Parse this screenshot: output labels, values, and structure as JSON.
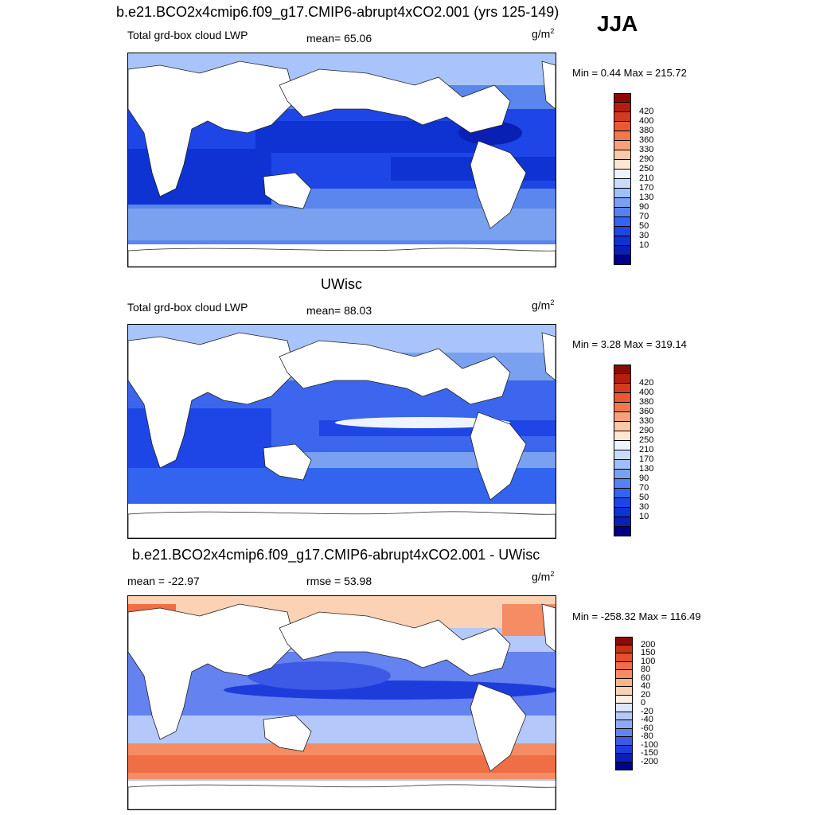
{
  "season": "JJA",
  "panels": [
    {
      "title": "b.e21.BCO2x4cmip6.f09_g17.CMIP6-abrupt4xCO2.001 (yrs 125-149)",
      "left_label": "Total grd-box cloud LWP",
      "center_label": "mean=  65.06",
      "units": "g/m",
      "units_sup": "2",
      "minmax": "Min =   0.44 Max = 215.72",
      "colorbar": {
        "colors": [
          "#00008b",
          "#0a20b4",
          "#0f32d2",
          "#1e46e6",
          "#3264f0",
          "#5582f0",
          "#7aa0f0",
          "#a0befa",
          "#c8dcfa",
          "#eef4ff",
          "#fde6d2",
          "#fcc8a8",
          "#f8a07a",
          "#f07850",
          "#e85a32",
          "#d23c1e",
          "#b41e0a",
          "#8c0a00"
        ],
        "labels": [
          "10",
          "30",
          "50",
          "70",
          "90",
          "130",
          "170",
          "210",
          "250",
          "290",
          "330",
          "360",
          "380",
          "400",
          "420"
        ]
      }
    },
    {
      "title": "UWisc",
      "left_label": "Total grd-box cloud LWP",
      "center_label": "mean=  88.03",
      "units": "g/m",
      "units_sup": "2",
      "minmax": "Min =   3.28 Max = 319.14",
      "colorbar": {
        "colors": [
          "#00008b",
          "#0a20b4",
          "#0f32d2",
          "#1e46e6",
          "#3264f0",
          "#5582f0",
          "#7aa0f0",
          "#a0befa",
          "#c8dcfa",
          "#eef4ff",
          "#fde6d2",
          "#fcc8a8",
          "#f8a07a",
          "#f07850",
          "#e85a32",
          "#d23c1e",
          "#b41e0a",
          "#8c0a00"
        ],
        "labels": [
          "10",
          "30",
          "50",
          "70",
          "90",
          "130",
          "170",
          "210",
          "250",
          "290",
          "330",
          "360",
          "380",
          "400",
          "420"
        ]
      }
    },
    {
      "title": "b.e21.BCO2x4cmip6.f09_g17.CMIP6-abrupt4xCO2.001 - UWisc",
      "left_label": "mean = -22.97",
      "center_label": "rmse =  53.98",
      "units": "g/m",
      "units_sup": "2",
      "minmax": "Min = -258.32 Max = 116.49",
      "colorbar": {
        "colors": [
          "#00008b",
          "#0a20b4",
          "#1e3cdc",
          "#3c5ae6",
          "#6482f0",
          "#8caaf5",
          "#b4c8fa",
          "#dce6fc",
          "#fff0e6",
          "#fcd2b4",
          "#f8b48c",
          "#f58c64",
          "#f06e46",
          "#e6502d",
          "#c83214",
          "#8c0a00"
        ],
        "labels": [
          "-200",
          "-150",
          "-100",
          "-80",
          "-60",
          "-40",
          "-20",
          "0",
          "20",
          "40",
          "60",
          "80",
          "100",
          "150",
          "200"
        ]
      }
    }
  ]
}
